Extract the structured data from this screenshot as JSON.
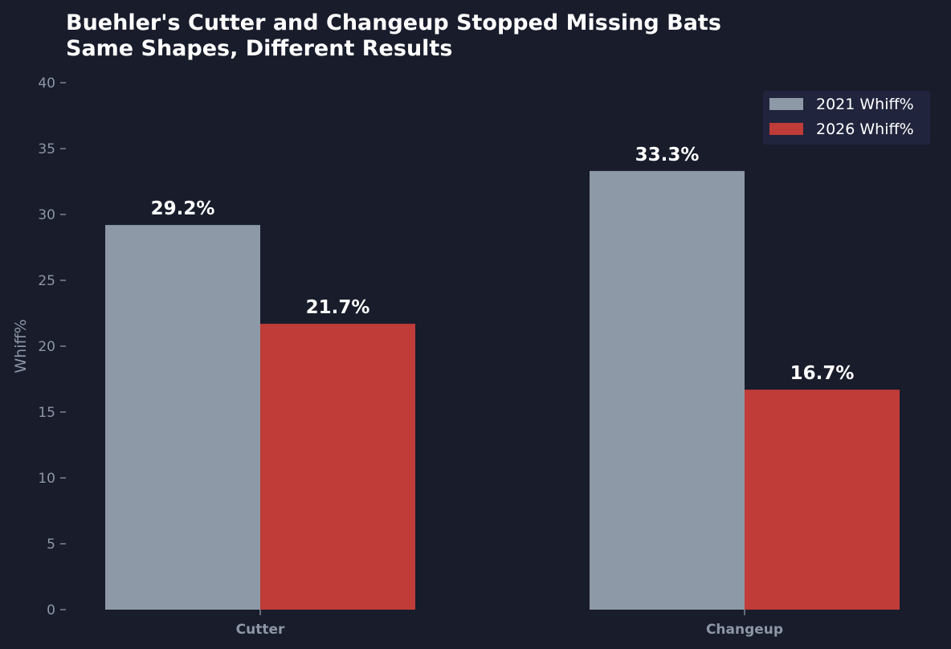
{
  "chart_data": {
    "type": "bar",
    "title": "Buehler's Cutter and Changeup Stopped Missing Bats",
    "subtitle": "Same Shapes, Different Results",
    "xlabel": "",
    "ylabel": "Whiff%",
    "ylim": [
      0,
      40
    ],
    "yticks": [
      "0",
      "5",
      "10",
      "15",
      "20",
      "25",
      "30",
      "35",
      "40"
    ],
    "categories": [
      "Cutter",
      "Changeup"
    ],
    "series": [
      {
        "name": "2021 Whiff%",
        "values": [
          29.2,
          33.3
        ],
        "labels": [
          "29.2%",
          "33.3%"
        ],
        "color": "#8d99a6"
      },
      {
        "name": "2026 Whiff%",
        "values": [
          21.7,
          16.7
        ],
        "labels": [
          "21.7%",
          "16.7%"
        ],
        "color": "#bf3c38"
      }
    ],
    "grid": false,
    "legend_position": "top-right"
  },
  "colors": {
    "background": "#181c2b",
    "legend_background": "#20253d",
    "muted_text": "#8d97a5",
    "title_text": "#ffffff"
  }
}
